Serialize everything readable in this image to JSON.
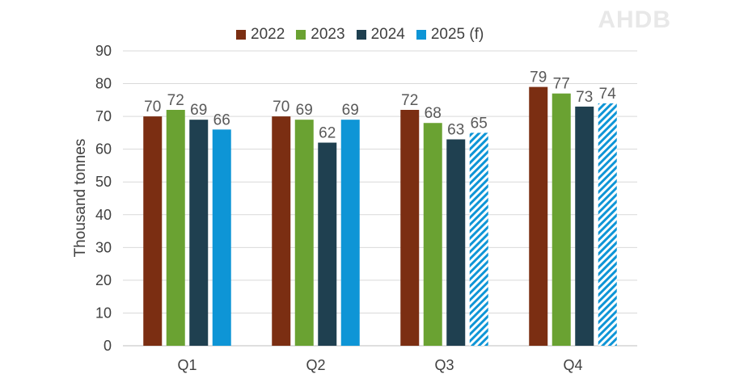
{
  "logo_text": "AHDB",
  "colors": {
    "2022": "#7b2e12",
    "2023": "#6aa232",
    "2024": "#1f4050",
    "2025 (f)": "#0e95d6"
  },
  "chart_data": {
    "type": "bar",
    "categories": [
      "Q1",
      "Q2",
      "Q3",
      "Q4"
    ],
    "series": [
      {
        "name": "2022",
        "values": [
          70,
          70,
          72,
          79
        ]
      },
      {
        "name": "2023",
        "values": [
          72,
          69,
          68,
          77
        ]
      },
      {
        "name": "2024",
        "values": [
          69,
          62,
          63,
          73
        ]
      },
      {
        "name": "2025 (f)",
        "values": [
          66,
          69,
          65,
          74
        ],
        "forecast_hatched": [
          false,
          false,
          true,
          true
        ]
      }
    ],
    "data_labels": [
      [
        "70",
        "72",
        "69",
        "66"
      ],
      [
        "70",
        "69",
        "62",
        "69"
      ],
      [
        "72",
        "68",
        "63",
        "65"
      ],
      [
        "79",
        "77",
        "73",
        "74"
      ]
    ],
    "ylabel": "Thousand tonnes",
    "ylim": [
      0,
      90
    ],
    "yticks": [
      0,
      10,
      20,
      30,
      40,
      50,
      60,
      70,
      80,
      90
    ],
    "grid": true,
    "legend_position": "top-center"
  }
}
